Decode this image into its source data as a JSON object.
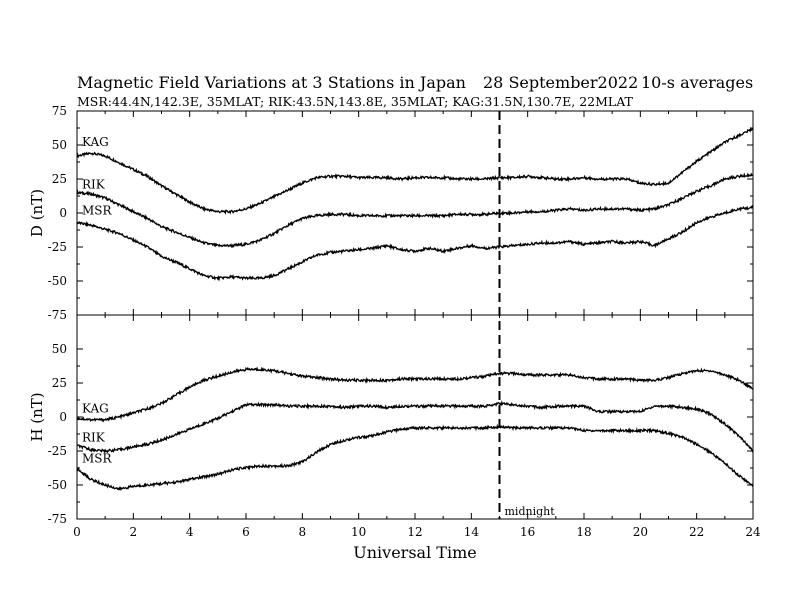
{
  "chart_data": [
    {
      "type": "line",
      "title": "Magnetic Field Variations at 3 Stations in Japan",
      "date": "28 September2022",
      "averaging": "10-s averages",
      "subtitle": "MSR:44.4N,142.3E, 35MLAT;  RIK:43.5N,143.8E, 35MLAT;  KAG:31.5N,130.7E, 22MLAT",
      "ylabel": "D (nT)",
      "xlim": [
        0,
        24
      ],
      "ylim": [
        -75,
        75
      ],
      "yticks": [
        75,
        50,
        25,
        0,
        -25,
        -50,
        -75
      ],
      "x": [
        0,
        0.5,
        1,
        1.5,
        2,
        2.5,
        3,
        3.5,
        4,
        4.5,
        5,
        5.5,
        6,
        6.5,
        7,
        7.5,
        8,
        8.5,
        9,
        9.5,
        10,
        10.5,
        11,
        11.5,
        12,
        12.5,
        13,
        13.5,
        14,
        14.5,
        15,
        15.5,
        16,
        16.5,
        17,
        17.5,
        18,
        18.5,
        19,
        19.5,
        20,
        20.5,
        21,
        21.5,
        22,
        22.5,
        23,
        23.5,
        24
      ],
      "series": [
        {
          "name": "KAG",
          "values": [
            42,
            44,
            42,
            37,
            32,
            27,
            20,
            14,
            8,
            3,
            1,
            1,
            3,
            7,
            12,
            17,
            22,
            26,
            27,
            27,
            26,
            26,
            26,
            25,
            26,
            26,
            26,
            25,
            25,
            25,
            26,
            26,
            27,
            26,
            25,
            25,
            26,
            25,
            25,
            25,
            22,
            21,
            22,
            30,
            38,
            45,
            52,
            57,
            62
          ]
        },
        {
          "name": "RIK",
          "values": [
            15,
            14,
            11,
            6,
            1,
            -4,
            -10,
            -14,
            -18,
            -22,
            -24,
            -24,
            -23,
            -20,
            -15,
            -9,
            -4,
            -2,
            -1,
            -1,
            -2,
            -2,
            -2,
            -2,
            -2,
            -2,
            -2,
            -1,
            -1,
            -1,
            0,
            0,
            1,
            1,
            2,
            3,
            2,
            3,
            3,
            3,
            2,
            3,
            6,
            11,
            16,
            20,
            25,
            27,
            28
          ]
        },
        {
          "name": "MSR",
          "values": [
            -7,
            -9,
            -12,
            -15,
            -20,
            -25,
            -32,
            -36,
            -41,
            -46,
            -48,
            -47,
            -48,
            -48,
            -46,
            -41,
            -36,
            -31,
            -29,
            -28,
            -27,
            -26,
            -24,
            -27,
            -28,
            -26,
            -28,
            -26,
            -24,
            -26,
            -25,
            -24,
            -23,
            -22,
            -22,
            -21,
            -23,
            -22,
            -21,
            -22,
            -21,
            -24,
            -19,
            -14,
            -7,
            -3,
            0,
            3,
            4
          ]
        }
      ]
    },
    {
      "type": "line",
      "ylabel": "H (nT)",
      "xlabel": "Universal Time",
      "xlim": [
        0,
        24
      ],
      "ylim": [
        -75,
        75
      ],
      "xticks": [
        0,
        2,
        4,
        6,
        8,
        10,
        12,
        14,
        16,
        18,
        20,
        22,
        24
      ],
      "yticks": [
        50,
        25,
        0,
        -25,
        -50,
        -75
      ],
      "annotation": {
        "x": 15,
        "label": "midnight"
      },
      "x": [
        0,
        0.5,
        1,
        1.5,
        2,
        2.5,
        3,
        3.5,
        4,
        4.5,
        5,
        5.5,
        6,
        6.5,
        7,
        7.5,
        8,
        8.5,
        9,
        9.5,
        10,
        10.5,
        11,
        11.5,
        12,
        12.5,
        13,
        13.5,
        14,
        14.5,
        15,
        15.5,
        16,
        16.5,
        17,
        17.5,
        18,
        18.5,
        19,
        19.5,
        20,
        20.5,
        21,
        21.5,
        22,
        22.5,
        23,
        23.5,
        24
      ],
      "series": [
        {
          "name": "KAG",
          "values": [
            -1,
            -2,
            -2,
            0,
            3,
            6,
            10,
            16,
            22,
            27,
            30,
            33,
            35,
            35,
            34,
            32,
            30,
            29,
            28,
            27,
            27,
            27,
            27,
            28,
            28,
            28,
            28,
            28,
            29,
            30,
            32,
            32,
            31,
            31,
            31,
            31,
            29,
            28,
            28,
            28,
            27,
            27,
            29,
            32,
            34,
            34,
            31,
            27,
            21
          ]
        },
        {
          "name": "RIK",
          "values": [
            -21,
            -24,
            -25,
            -24,
            -22,
            -20,
            -17,
            -13,
            -9,
            -5,
            -1,
            4,
            9,
            9,
            9,
            8,
            8,
            8,
            8,
            7,
            8,
            8,
            7,
            8,
            8,
            8,
            8,
            8,
            8,
            8,
            10,
            9,
            8,
            7,
            8,
            8,
            8,
            4,
            4,
            4,
            4,
            8,
            8,
            7,
            6,
            2,
            -5,
            -14,
            -25
          ]
        },
        {
          "name": "MSR",
          "values": [
            -38,
            -46,
            -50,
            -53,
            -51,
            -50,
            -49,
            -48,
            -46,
            -44,
            -42,
            -39,
            -37,
            -36,
            -36,
            -36,
            -33,
            -26,
            -20,
            -17,
            -15,
            -14,
            -11,
            -9,
            -8,
            -8,
            -8,
            -8,
            -8,
            -8,
            -7,
            -8,
            -8,
            -8,
            -8,
            -8,
            -10,
            -10,
            -10,
            -10,
            -10,
            -10,
            -12,
            -15,
            -20,
            -26,
            -34,
            -43,
            -51
          ]
        }
      ]
    }
  ]
}
